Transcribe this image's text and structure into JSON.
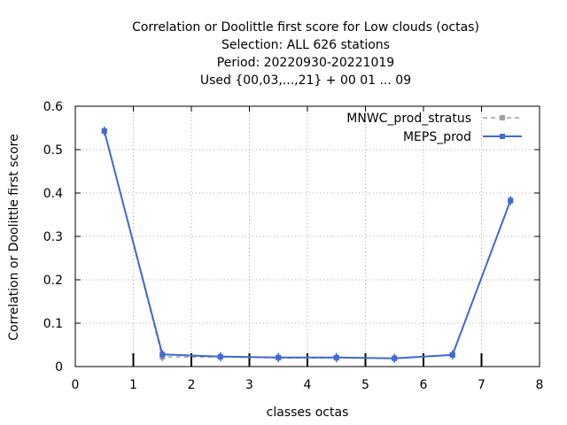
{
  "chart_data": {
    "type": "line",
    "title_lines": [
      "Correlation or Doolittle first score  for Low clouds (octas)",
      "Selection: ALL    626 stations",
      "Period: 20220930-20221019",
      "Used {00,03,...,21} + 00 01 ... 09"
    ],
    "xlabel": "classes octas",
    "ylabel": "Correlation or Doolittle first score",
    "xlim": [
      0,
      8
    ],
    "ylim": [
      0,
      0.6
    ],
    "xticks": [
      "0",
      "1",
      "2",
      "3",
      "4",
      "5",
      "6",
      "7",
      "8"
    ],
    "yticks": [
      "0",
      "0.1",
      "0.2",
      "0.3",
      "0.4",
      "0.5",
      "0.6"
    ],
    "grid": true,
    "legend_position": "top-right",
    "class_boundaries": [
      1,
      2,
      3,
      4,
      5,
      6,
      7
    ],
    "x": [
      0.5,
      1.5,
      2.5,
      3.5,
      4.5,
      5.5,
      6.5,
      7.5
    ],
    "series": [
      {
        "name": "MNWC_prod_stratus",
        "color": "#a0a0a0",
        "style": "dashed",
        "values": [
          0.543,
          0.022,
          0.022,
          0.02,
          0.02,
          0.019,
          0.026,
          0.382
        ]
      },
      {
        "name": "MEPS_prod",
        "color": "#4169d0",
        "style": "solid",
        "values": [
          0.543,
          0.028,
          0.023,
          0.021,
          0.021,
          0.019,
          0.027,
          0.383
        ]
      }
    ]
  }
}
